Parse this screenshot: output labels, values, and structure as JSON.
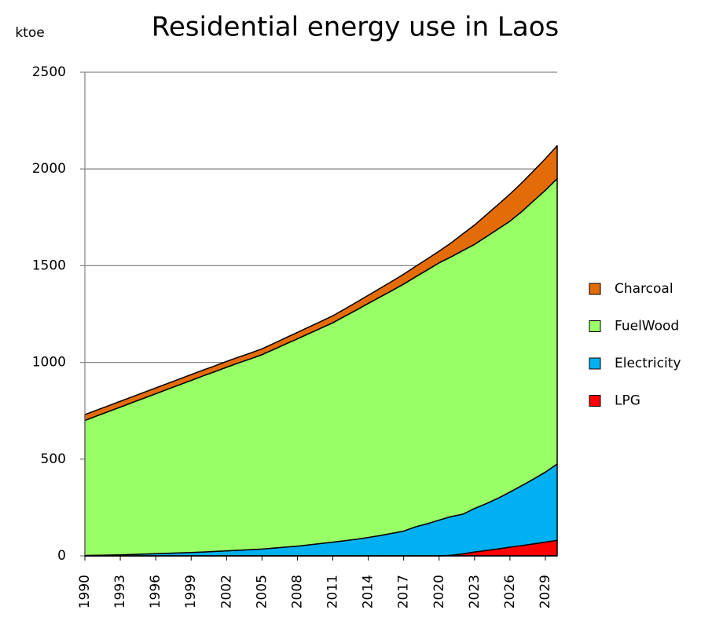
{
  "chart_data": {
    "type": "stacked_area",
    "title": "Residential energy use in Laos",
    "y_label": "ktoe",
    "x": [
      1990,
      1991,
      1992,
      1993,
      1994,
      1995,
      1996,
      1997,
      1998,
      1999,
      2000,
      2001,
      2002,
      2003,
      2004,
      2005,
      2006,
      2007,
      2008,
      2009,
      2010,
      2011,
      2012,
      2013,
      2014,
      2015,
      2016,
      2017,
      2018,
      2019,
      2020,
      2021,
      2022,
      2023,
      2024,
      2025,
      2026,
      2027,
      2028,
      2029,
      2030
    ],
    "xlim": [
      1990,
      2030
    ],
    "xticks": [
      1990,
      1993,
      1996,
      1999,
      2002,
      2005,
      2008,
      2011,
      2014,
      2017,
      2020,
      2023,
      2026,
      2029
    ],
    "ylim": [
      0,
      2500
    ],
    "yticks": [
      0,
      500,
      1000,
      1500,
      2000,
      2500
    ],
    "grid": true,
    "legend": "right",
    "series": [
      {
        "name": "LPG",
        "color": "#ff0000",
        "values": [
          0,
          0,
          0,
          0,
          0,
          0,
          0,
          0,
          0,
          0,
          0,
          0,
          0,
          0,
          0,
          0,
          0,
          0,
          0,
          0,
          0,
          0,
          0,
          0,
          0,
          0,
          0,
          0,
          0,
          0,
          0,
          3,
          10,
          20,
          28,
          36,
          45,
          53,
          62,
          71,
          80
        ]
      },
      {
        "name": "Electricity",
        "color": "#00b0f0",
        "values": [
          2,
          3,
          4,
          5,
          7,
          9,
          11,
          13,
          15,
          17,
          20,
          23,
          26,
          29,
          32,
          35,
          40,
          45,
          50,
          57,
          64,
          71,
          78,
          86,
          95,
          105,
          116,
          128,
          150,
          166,
          185,
          200,
          205,
          225,
          242,
          262,
          285,
          310,
          335,
          362,
          395
        ]
      },
      {
        "name": "FuelWood",
        "color": "#99ff66",
        "values": [
          698,
          720,
          742,
          764,
          785,
          806,
          827,
          848,
          869,
          890,
          910,
          929,
          949,
          968,
          986,
          1005,
          1027,
          1050,
          1072,
          1093,
          1113,
          1134,
          1160,
          1185,
          1210,
          1233,
          1255,
          1277,
          1292,
          1312,
          1330,
          1342,
          1363,
          1365,
          1380,
          1392,
          1400,
          1417,
          1438,
          1457,
          1475
        ]
      },
      {
        "name": "Charcoal",
        "color": "#e36c09",
        "values": [
          30,
          30,
          30,
          30,
          30,
          30,
          30,
          30,
          30,
          30,
          30,
          30,
          30,
          30,
          30,
          30,
          31,
          32,
          33,
          34,
          35,
          36,
          38,
          40,
          42,
          45,
          48,
          51,
          54,
          57,
          60,
          72,
          86,
          100,
          113,
          126,
          140,
          148,
          155,
          163,
          170
        ]
      }
    ]
  }
}
